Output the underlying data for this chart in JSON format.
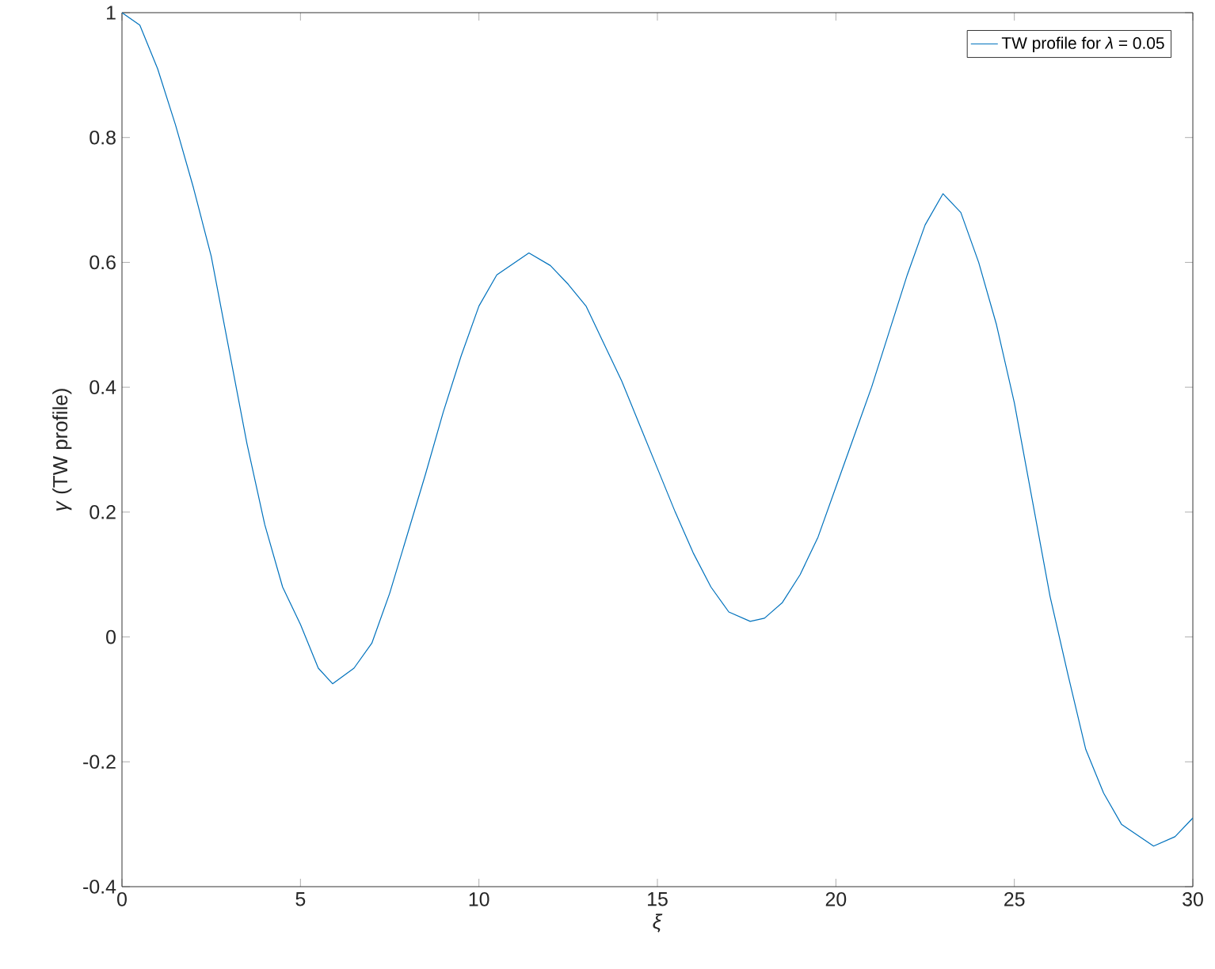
{
  "chart_data": {
    "type": "line",
    "xlabel": "*ξ*",
    "ylabel": "*γ*    (TW profile)",
    "xlim": [
      0,
      30
    ],
    "ylim": [
      -0.4,
      1
    ],
    "xticks": [
      0,
      5,
      10,
      15,
      20,
      25,
      30
    ],
    "yticks": [
      -0.4,
      -0.2,
      0,
      0.2,
      0.4,
      0.6,
      0.8,
      1
    ],
    "legend": "top right",
    "series": [
      {
        "name": "TW profile for *λ* = 0.05",
        "color": "#0072bd",
        "x": [
          0,
          0.5,
          1,
          1.5,
          2,
          2.5,
          3,
          3.5,
          4,
          4.5,
          5,
          5.5,
          5.9,
          6.5,
          7,
          7.5,
          8,
          8.5,
          9,
          9.5,
          10,
          10.5,
          11.4,
          12,
          12.5,
          13,
          13.5,
          14,
          14.5,
          15,
          15.5,
          16,
          16.5,
          17,
          17.6,
          18,
          18.5,
          19,
          19.5,
          20,
          20.5,
          21,
          21.5,
          22,
          22.5,
          23,
          23.5,
          24,
          24.5,
          25,
          25.5,
          26,
          26.5,
          27,
          27.5,
          28,
          28.9,
          29.5,
          30
        ],
        "values": [
          1.0,
          0.98,
          0.91,
          0.82,
          0.72,
          0.61,
          0.46,
          0.31,
          0.18,
          0.08,
          0.02,
          -0.05,
          -0.075,
          -0.05,
          -0.01,
          0.07,
          0.165,
          0.26,
          0.36,
          0.45,
          0.53,
          0.58,
          0.615,
          0.595,
          0.565,
          0.53,
          0.47,
          0.41,
          0.34,
          0.27,
          0.2,
          0.135,
          0.08,
          0.04,
          0.025,
          0.03,
          0.055,
          0.1,
          0.16,
          0.24,
          0.32,
          0.4,
          0.49,
          0.58,
          0.66,
          0.71,
          0.68,
          0.6,
          0.5,
          0.375,
          0.22,
          0.065,
          -0.06,
          -0.18,
          -0.25,
          -0.3,
          -0.335,
          -0.32,
          -0.29
        ]
      }
    ]
  }
}
